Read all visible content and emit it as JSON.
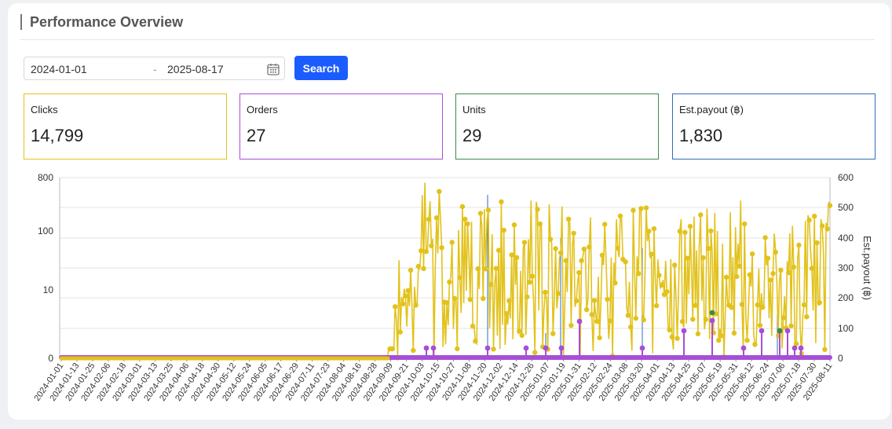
{
  "header": {
    "title": "Performance Overview"
  },
  "filters": {
    "start_date": "2024-01-01",
    "separator": "-",
    "end_date": "2025-08-17",
    "search_label": "Search"
  },
  "icons": {
    "calendar": "calendar-icon"
  },
  "stats": [
    {
      "label": "Clicks",
      "value": "14,799",
      "color": "#e2c21b"
    },
    {
      "label": "Orders",
      "value": "27",
      "color": "#a64fd6"
    },
    {
      "label": "Units",
      "value": "29",
      "color": "#3c8a4a"
    },
    {
      "label": "Est.payout (฿)",
      "value": "1,830",
      "color": "#2f6db7"
    }
  ],
  "chart_data": {
    "type": "line",
    "y_left": {
      "scale": "log",
      "ticks": [
        "0",
        "10",
        "100",
        "800"
      ]
    },
    "y_right": {
      "label": "Est.payout (฿)",
      "ticks": [
        "0",
        "100",
        "200",
        "300",
        "400",
        "500",
        "600"
      ],
      "range": [
        0,
        600
      ]
    },
    "x_ticks": [
      "2024-01-01",
      "2024-01-13",
      "2024-01-25",
      "2024-02-06",
      "2024-02-18",
      "2024-03-01",
      "2024-03-13",
      "2024-03-25",
      "2024-04-06",
      "2024-04-18",
      "2024-04-30",
      "2024-05-12",
      "2024-05-24",
      "2024-06-05",
      "2024-06-17",
      "2024-06-29",
      "2024-07-11",
      "2024-07-23",
      "2024-08-04",
      "2024-08-16",
      "2024-08-28",
      "2024-09-09",
      "2024-09-21",
      "2024-10-03",
      "2024-10-15",
      "2024-10-27",
      "2024-11-08",
      "2024-11-20",
      "2024-12-02",
      "2024-12-14",
      "2024-12-26",
      "2025-01-07",
      "2025-01-19",
      "2025-01-31",
      "2025-02-12",
      "2025-02-24",
      "2025-03-08",
      "2025-03-20",
      "2025-04-01",
      "2025-04-13",
      "2025-04-25",
      "2025-05-07",
      "2025-05-19",
      "2025-05-31",
      "2025-06-12",
      "2025-06-24",
      "2025-07-06",
      "2025-07-18",
      "2025-07-30",
      "2025-08-11"
    ],
    "grid": true,
    "series": [
      {
        "name": "Clicks",
        "color": "#e2c21b"
      },
      {
        "name": "Orders",
        "color": "#a64fd6"
      },
      {
        "name": "Units",
        "color": "#3c8a4a"
      },
      {
        "name": "Est.payout (฿)",
        "color": "#2f6db7"
      }
    ]
  }
}
